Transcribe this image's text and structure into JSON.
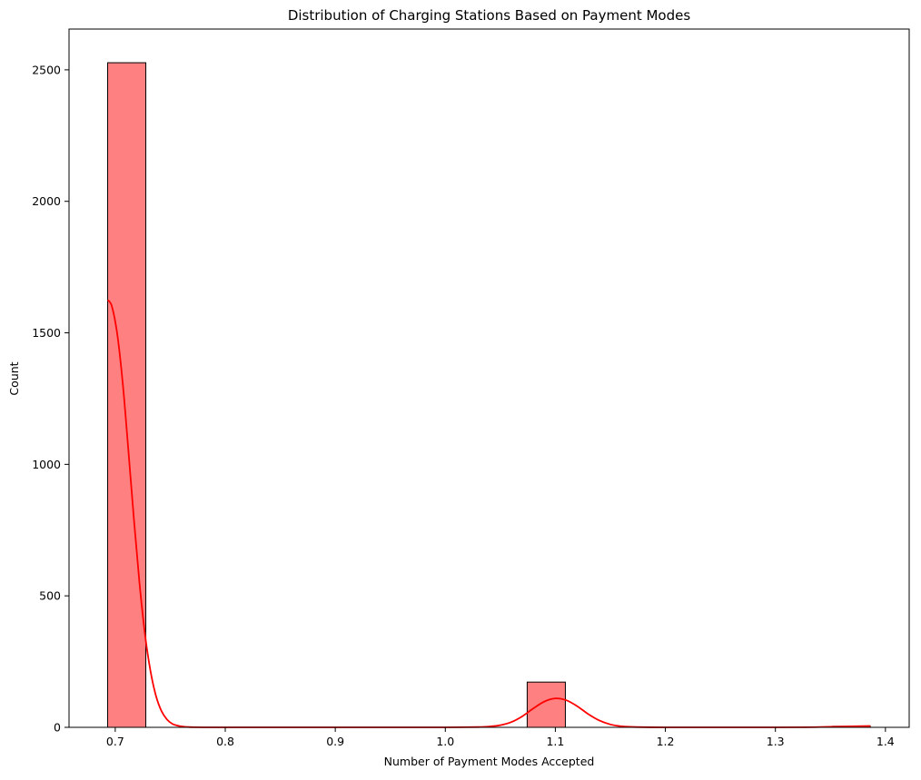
{
  "chart_data": {
    "type": "bar",
    "subtype": "histogram_with_kde",
    "title": "Distribution of Charging Stations Based on Payment Modes",
    "xlabel": "Number of Payment Modes Accepted",
    "ylabel": "Count",
    "xlim": [
      0.658,
      1.4216
    ],
    "ylim": [
      0,
      2655
    ],
    "xticks": [
      0.7,
      0.8,
      0.9,
      1.0,
      1.1,
      1.2,
      1.3,
      1.4
    ],
    "xtick_labels": [
      "0.7",
      "0.8",
      "0.9",
      "1.0",
      "1.1",
      "1.2",
      "1.3",
      "1.4"
    ],
    "yticks": [
      0,
      500,
      1000,
      1500,
      2000,
      2500
    ],
    "ytick_labels": [
      "0",
      "500",
      "1000",
      "1500",
      "2000",
      "2500"
    ],
    "grid": false,
    "legend": "none",
    "bar_color": "#ff8080",
    "bar_edge_color": "#000000",
    "kde_color": "#ff0000",
    "bins": [
      {
        "x0": 0.6931,
        "x1": 0.7278,
        "count": 2527
      },
      {
        "x0": 1.0744,
        "x1": 1.1091,
        "count": 172
      },
      {
        "x0": 1.3517,
        "x1": 1.3863,
        "count": 4
      }
    ],
    "kde": {
      "x": [
        0.6931,
        0.697,
        0.702,
        0.707,
        0.712,
        0.717,
        0.722,
        0.727,
        0.732,
        0.737,
        0.742,
        0.747,
        0.752,
        0.757,
        0.762,
        0.767,
        0.772,
        0.78,
        0.79,
        0.8,
        0.85,
        0.9,
        0.95,
        1.0,
        1.03,
        1.04,
        1.05,
        1.06,
        1.07,
        1.08,
        1.09,
        1.1,
        1.11,
        1.12,
        1.13,
        1.14,
        1.15,
        1.16,
        1.17,
        1.2,
        1.25,
        1.3,
        1.33,
        1.35,
        1.37,
        1.3863
      ],
      "y": [
        1625,
        1600,
        1490,
        1300,
        1050,
        790,
        550,
        355,
        215,
        120,
        62,
        30,
        13,
        6,
        2.5,
        1,
        0.4,
        0,
        0,
        0,
        0,
        0,
        0,
        0,
        1,
        3,
        8,
        20,
        42,
        72,
        98,
        110,
        103,
        80,
        50,
        26,
        11,
        4,
        1.5,
        0,
        0,
        0,
        0.5,
        2,
        4,
        5
      ]
    }
  }
}
